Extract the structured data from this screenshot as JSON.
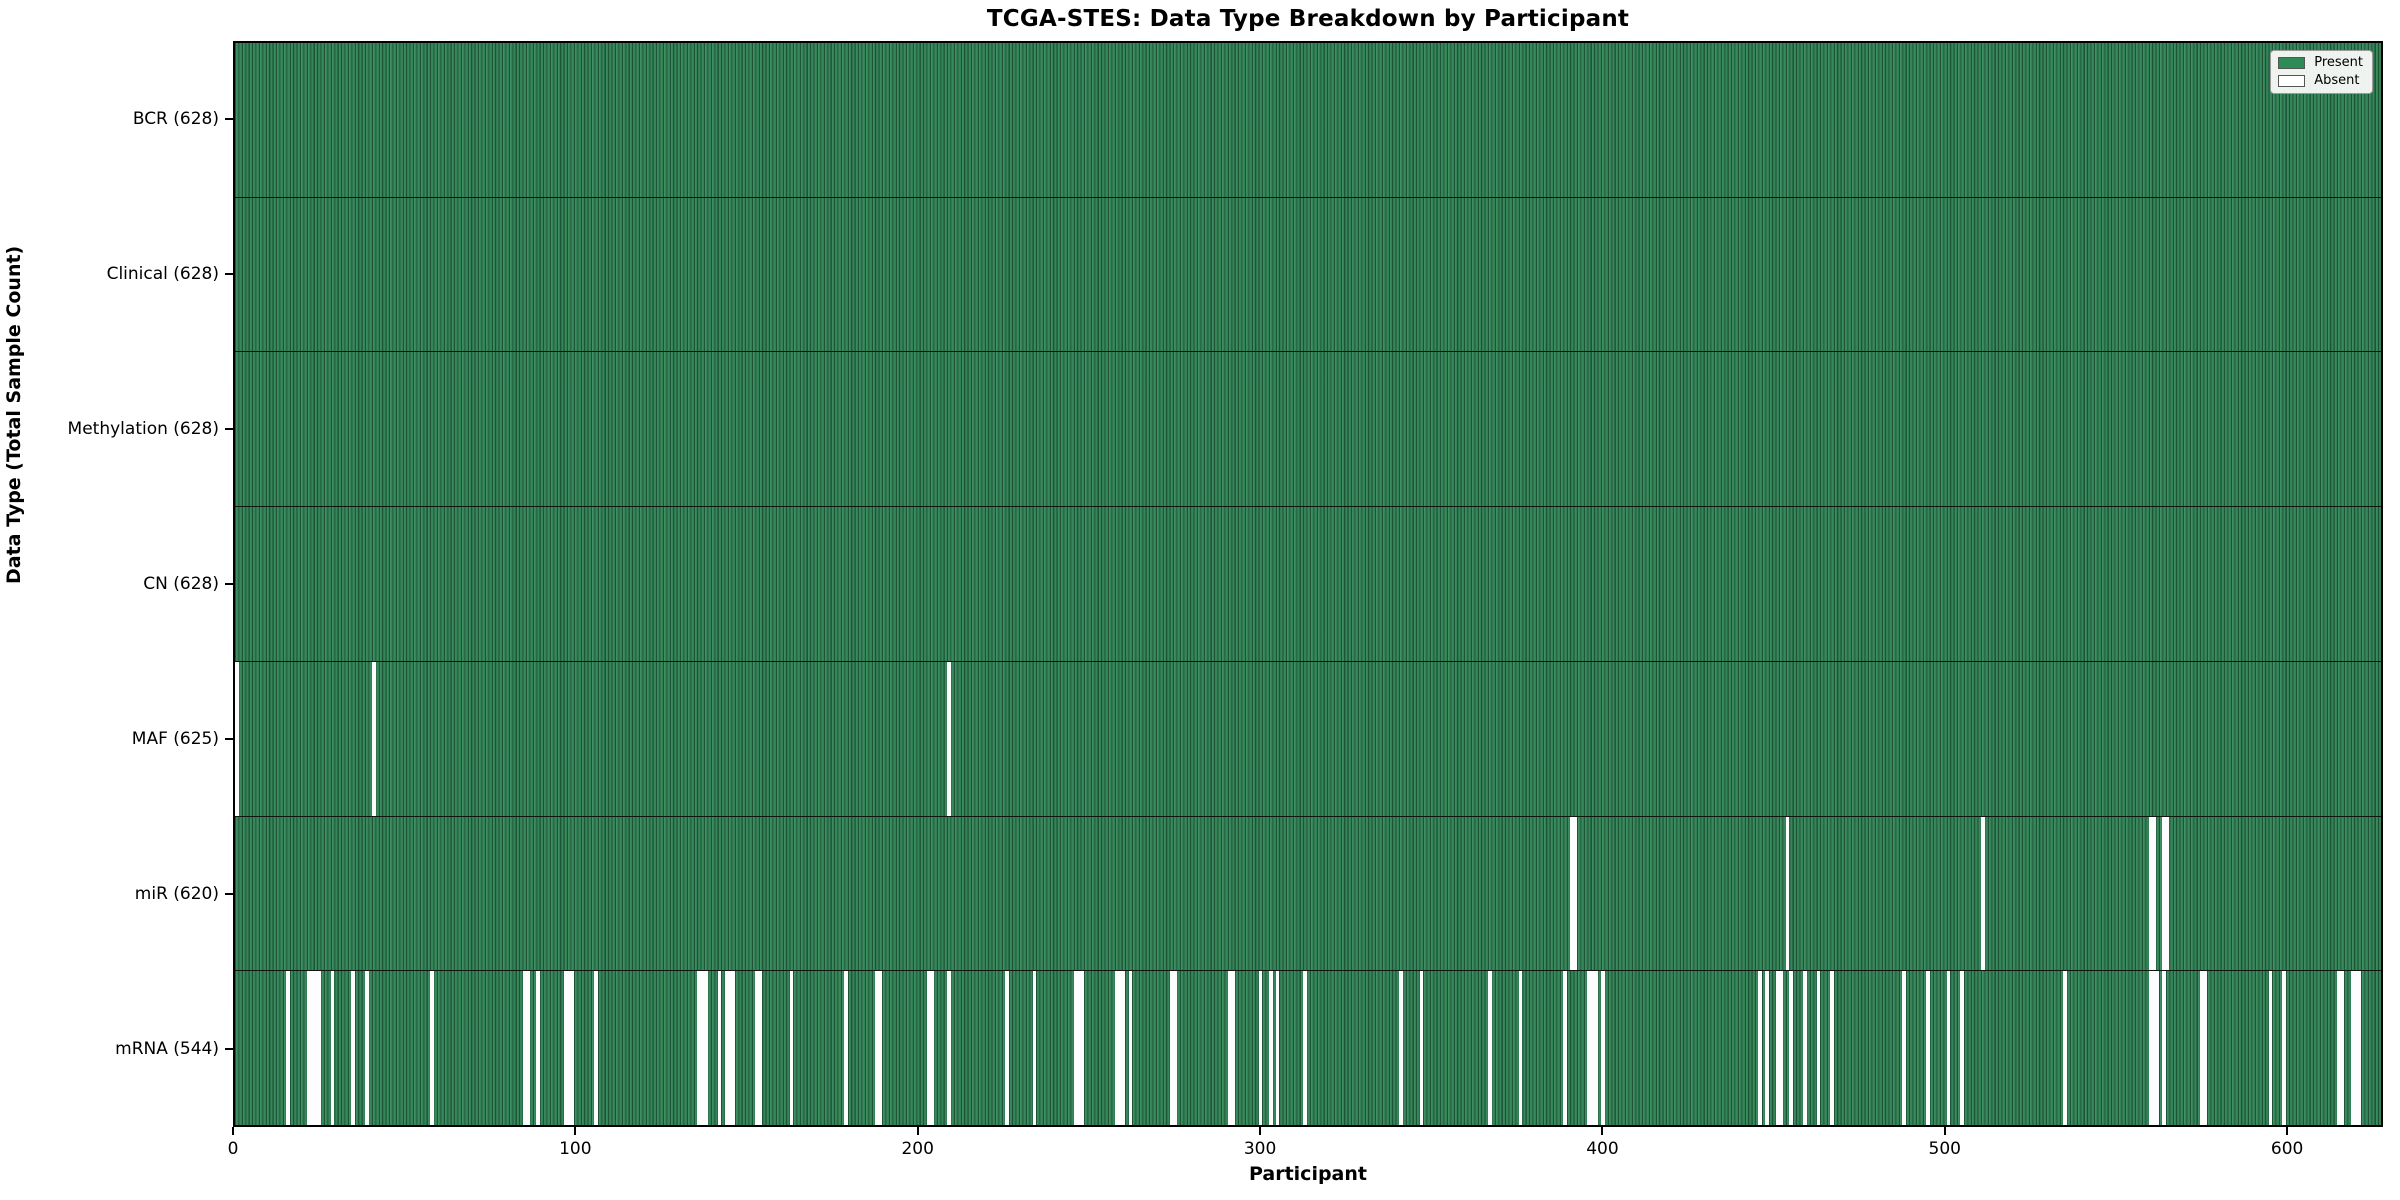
{
  "chart_data": {
    "type": "heatmap",
    "title": "TCGA-STES: Data Type Breakdown by Participant",
    "xlabel": "Participant",
    "ylabel": "Data Type (Total Sample Count)",
    "x_ticks": [
      0,
      100,
      200,
      300,
      400,
      500,
      600
    ],
    "x_range": [
      0,
      628
    ],
    "n_participants": 628,
    "legend": {
      "position": "upper right",
      "items": [
        {
          "label": "Present",
          "color": "#2E8B57"
        },
        {
          "label": "Absent",
          "color": "#FFFFFF"
        }
      ]
    },
    "colors": {
      "present_fill": "#35895B",
      "bar_edge": "#10260f",
      "absent_fill": "#FFFFFF",
      "axis": "#000000"
    },
    "rows": [
      {
        "label": "BCR (628)",
        "name": "BCR",
        "present_count": 628,
        "absent_participants": []
      },
      {
        "label": "Clinical (628)",
        "name": "Clinical",
        "present_count": 628,
        "absent_participants": []
      },
      {
        "label": "Methylation (628)",
        "name": "Methylation",
        "present_count": 628,
        "absent_participants": []
      },
      {
        "label": "CN (628)",
        "name": "CN",
        "present_count": 628,
        "absent_participants": []
      },
      {
        "label": "MAF (625)",
        "name": "MAF",
        "present_count": 625,
        "absent_participants": [
          0,
          40,
          208
        ]
      },
      {
        "label": "miR (620)",
        "name": "miR",
        "present_count": 620,
        "absent_participants": [
          390,
          391,
          453,
          510,
          559,
          560,
          563,
          564
        ]
      },
      {
        "label": "mRNA (544)",
        "name": "mRNA",
        "present_count": 544,
        "absent_participants": [
          15,
          21,
          22,
          23,
          24,
          28,
          34,
          38,
          57,
          84,
          85,
          88,
          96,
          97,
          98,
          105,
          135,
          136,
          137,
          141,
          143,
          144,
          145,
          152,
          153,
          162,
          178,
          187,
          188,
          202,
          203,
          208,
          225,
          233,
          245,
          246,
          247,
          257,
          258,
          259,
          261,
          273,
          274,
          290,
          291,
          299,
          302,
          304,
          312,
          340,
          346,
          366,
          375,
          388,
          395,
          396,
          397,
          399,
          445,
          447,
          450,
          451,
          454,
          458,
          462,
          466,
          487,
          494,
          500,
          504,
          534,
          559,
          560,
          561,
          563,
          574,
          575,
          594,
          598,
          614,
          615,
          618,
          619,
          620
        ]
      }
    ]
  }
}
